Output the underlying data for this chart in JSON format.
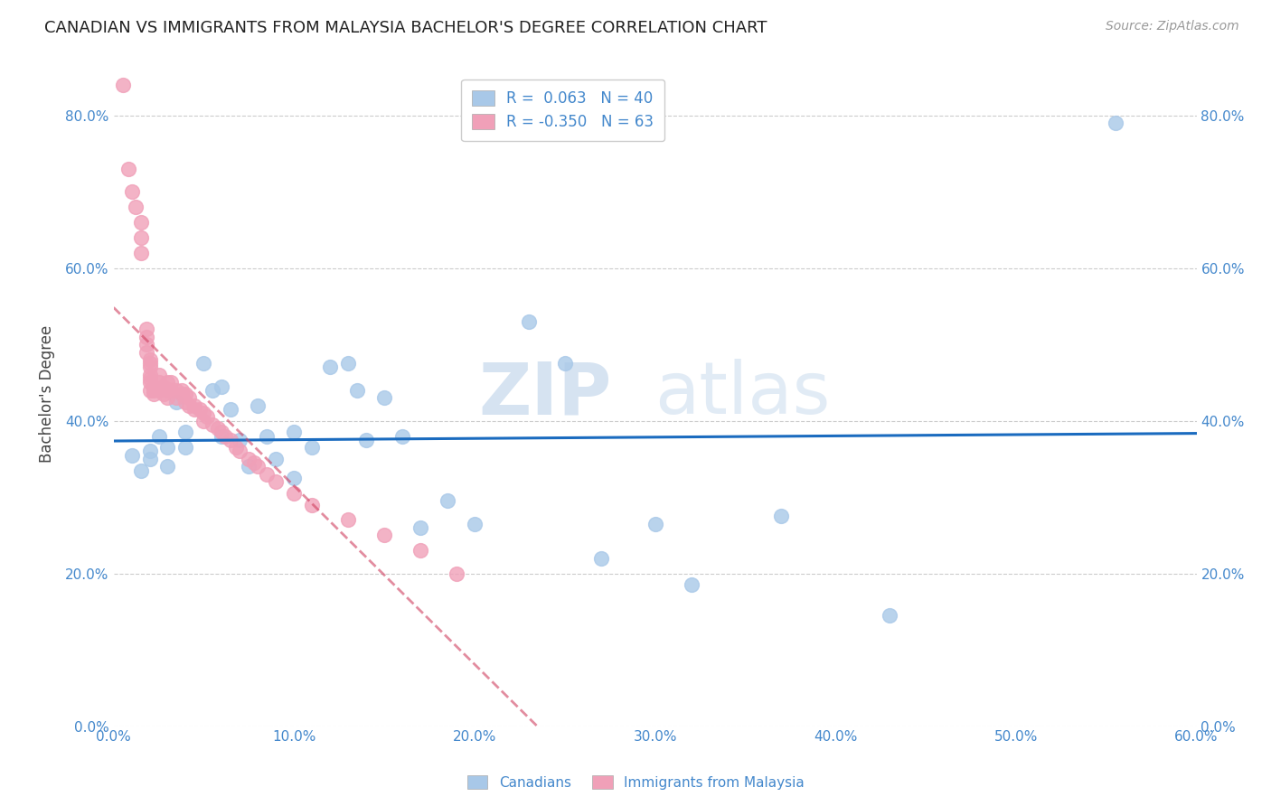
{
  "title": "CANADIAN VS IMMIGRANTS FROM MALAYSIA BACHELOR'S DEGREE CORRELATION CHART",
  "source": "Source: ZipAtlas.com",
  "ylabel": "Bachelor's Degree",
  "xlim": [
    0.0,
    0.6
  ],
  "ylim": [
    0.0,
    0.87
  ],
  "yticks": [
    0.0,
    0.2,
    0.4,
    0.6,
    0.8
  ],
  "xticks": [
    0.0,
    0.1,
    0.2,
    0.3,
    0.4,
    0.5,
    0.6
  ],
  "xtick_labels": [
    "0.0%",
    "10.0%",
    "20.0%",
    "30.0%",
    "40.0%",
    "50.0%",
    "60.0%"
  ],
  "ytick_labels": [
    "0.0%",
    "20.0%",
    "40.0%",
    "60.0%",
    "80.0%"
  ],
  "canadians_x": [
    0.01,
    0.015,
    0.02,
    0.02,
    0.025,
    0.03,
    0.03,
    0.035,
    0.04,
    0.04,
    0.05,
    0.055,
    0.06,
    0.06,
    0.065,
    0.07,
    0.075,
    0.08,
    0.085,
    0.09,
    0.1,
    0.1,
    0.11,
    0.12,
    0.13,
    0.135,
    0.14,
    0.15,
    0.16,
    0.17,
    0.185,
    0.2,
    0.23,
    0.25,
    0.27,
    0.3,
    0.32,
    0.37,
    0.43,
    0.555
  ],
  "canadians_y": [
    0.355,
    0.335,
    0.36,
    0.35,
    0.38,
    0.365,
    0.34,
    0.425,
    0.385,
    0.365,
    0.475,
    0.44,
    0.38,
    0.445,
    0.415,
    0.375,
    0.34,
    0.42,
    0.38,
    0.35,
    0.385,
    0.325,
    0.365,
    0.47,
    0.475,
    0.44,
    0.375,
    0.43,
    0.38,
    0.26,
    0.295,
    0.265,
    0.53,
    0.475,
    0.22,
    0.265,
    0.185,
    0.275,
    0.145,
    0.79
  ],
  "malaysia_x": [
    0.005,
    0.008,
    0.01,
    0.012,
    0.015,
    0.015,
    0.015,
    0.018,
    0.018,
    0.018,
    0.018,
    0.02,
    0.02,
    0.02,
    0.02,
    0.02,
    0.02,
    0.02,
    0.022,
    0.022,
    0.022,
    0.025,
    0.025,
    0.025,
    0.028,
    0.028,
    0.03,
    0.03,
    0.03,
    0.032,
    0.032,
    0.035,
    0.035,
    0.038,
    0.038,
    0.04,
    0.04,
    0.042,
    0.042,
    0.045,
    0.045,
    0.048,
    0.05,
    0.05,
    0.052,
    0.055,
    0.058,
    0.06,
    0.062,
    0.065,
    0.068,
    0.07,
    0.075,
    0.078,
    0.08,
    0.085,
    0.09,
    0.1,
    0.11,
    0.13,
    0.15,
    0.17,
    0.19
  ],
  "malaysia_y": [
    0.84,
    0.73,
    0.7,
    0.68,
    0.66,
    0.64,
    0.62,
    0.52,
    0.51,
    0.5,
    0.49,
    0.48,
    0.475,
    0.47,
    0.46,
    0.455,
    0.45,
    0.44,
    0.445,
    0.44,
    0.435,
    0.46,
    0.45,
    0.44,
    0.445,
    0.435,
    0.45,
    0.44,
    0.43,
    0.45,
    0.44,
    0.44,
    0.43,
    0.44,
    0.435,
    0.435,
    0.425,
    0.43,
    0.42,
    0.42,
    0.415,
    0.415,
    0.41,
    0.4,
    0.405,
    0.395,
    0.39,
    0.385,
    0.38,
    0.375,
    0.365,
    0.36,
    0.35,
    0.345,
    0.34,
    0.33,
    0.32,
    0.305,
    0.29,
    0.27,
    0.25,
    0.23,
    0.2
  ],
  "canadian_color": "#a8c8e8",
  "malaysia_color": "#f0a0b8",
  "canadian_line_color": "#1a6bbf",
  "malaysia_line_color": "#d04060",
  "legend_R_canadian": "R =  0.063",
  "legend_N_canadian": "N = 40",
  "legend_R_malaysia": "R = -0.350",
  "legend_N_malaysia": "N = 63",
  "watermark_zip": "ZIP",
  "watermark_atlas": "atlas",
  "background_color": "#ffffff",
  "grid_color": "#cccccc",
  "tick_color": "#4488cc",
  "title_fontsize": 13,
  "axis_label_fontsize": 12,
  "tick_fontsize": 11,
  "legend_fontsize": 12
}
